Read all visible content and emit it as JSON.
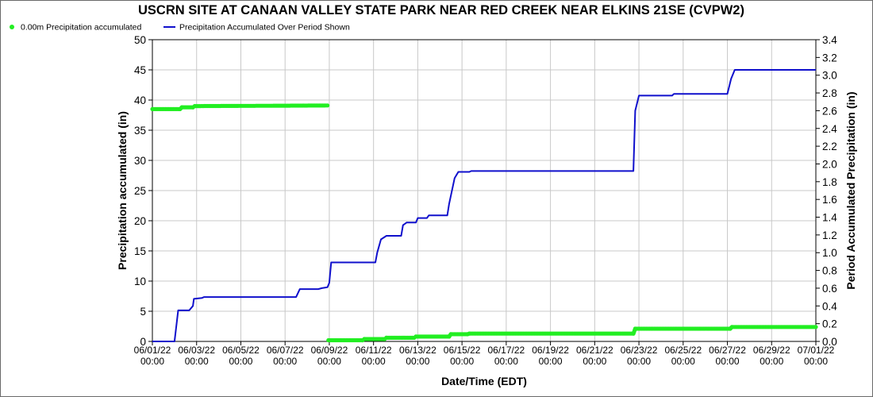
{
  "chart_data": {
    "type": "line",
    "title": "USCRN SITE AT CANAAN VALLEY STATE PARK NEAR RED CREEK NEAR ELKINS 21SE (CVPW2)",
    "xlabel": "Date/Time (EDT)",
    "ylabel_left": "Precipitation accumulated (in)",
    "ylabel_right": "Period Accumulated Precipitation (in)",
    "x_ticks": [
      "06/01/22 00:00",
      "06/03/22 00:00",
      "06/05/22 00:00",
      "06/07/22 00:00",
      "06/09/22 00:00",
      "06/11/22 00:00",
      "06/13/22 00:00",
      "06/15/22 00:00",
      "06/17/22 00:00",
      "06/19/22 00:00",
      "06/21/22 00:00",
      "06/23/22 00:00",
      "06/25/22 00:00",
      "06/27/22 00:00",
      "06/29/22 00:00",
      "07/01/22 00:00"
    ],
    "xlim": [
      "06/01/22 00:00",
      "07/01/22 00:00"
    ],
    "ylim_left": [
      0,
      50
    ],
    "yticks_left": [
      "0",
      "5",
      "10",
      "15",
      "20",
      "25",
      "30",
      "35",
      "40",
      "45",
      "50"
    ],
    "ylim_right": [
      0,
      3.4
    ],
    "yticks_right": [
      "0.0",
      "0.2",
      "0.4",
      "0.6",
      "0.8",
      "1.0",
      "1.2",
      "1.4",
      "1.6",
      "1.8",
      "2.0",
      "2.2",
      "2.4",
      "2.6",
      "2.8",
      "3.0",
      "3.2",
      "3.4"
    ],
    "grid": true,
    "legend_position": "top-left",
    "series": [
      {
        "name": "0.00m Precipitation accumulated",
        "axis": "left",
        "color": "#22ee22",
        "style": "dots",
        "points": [
          [
            "06/01/22 00:00",
            38.5
          ],
          [
            "06/02/22 06:00",
            38.5
          ],
          [
            "06/02/22 08:00",
            38.8
          ],
          [
            "06/02/22 20:00",
            38.8
          ],
          [
            "06/02/22 22:00",
            39.0
          ],
          [
            "06/08/22 22:00",
            39.1
          ],
          [
            "06/08/22 23:00",
            0.2
          ],
          [
            "06/10/22 12:00",
            0.2
          ],
          [
            "06/10/22 14:00",
            0.4
          ],
          [
            "06/11/22 12:00",
            0.4
          ],
          [
            "06/11/22 14:00",
            0.6
          ],
          [
            "06/12/22 20:00",
            0.6
          ],
          [
            "06/12/22 22:00",
            0.8
          ],
          [
            "06/14/22 10:00",
            0.8
          ],
          [
            "06/14/22 12:00",
            1.2
          ],
          [
            "06/15/22 06:00",
            1.2
          ],
          [
            "06/15/22 08:00",
            1.3
          ],
          [
            "06/22/22 18:00",
            1.3
          ],
          [
            "06/22/22 20:00",
            2.1
          ],
          [
            "06/27/22 03:00",
            2.1
          ],
          [
            "06/27/22 05:00",
            2.4
          ],
          [
            "07/01/22 00:00",
            2.4
          ]
        ]
      },
      {
        "name": "Precipitation Accumulated Over Period Shown",
        "axis": "right",
        "color": "#1010cc",
        "style": "line",
        "points": [
          [
            "06/01/22 00:00",
            0
          ],
          [
            "06/02/22 00:00",
            0
          ],
          [
            "06/02/22 04:00",
            0.35
          ],
          [
            "06/02/22 16:00",
            0.35
          ],
          [
            "06/02/22 20:00",
            0.4
          ],
          [
            "06/02/22 21:00",
            0.48
          ],
          [
            "06/03/22 06:00",
            0.49
          ],
          [
            "06/03/22 08:00",
            0.5
          ],
          [
            "06/07/22 12:00",
            0.5
          ],
          [
            "06/07/22 16:00",
            0.59
          ],
          [
            "06/08/22 12:00",
            0.59
          ],
          [
            "06/08/22 16:00",
            0.6
          ],
          [
            "06/08/22 22:00",
            0.61
          ],
          [
            "06/09/22 00:00",
            0.66
          ],
          [
            "06/09/22 02:00",
            0.89
          ],
          [
            "06/11/22 02:00",
            0.89
          ],
          [
            "06/11/22 04:00",
            1.0
          ],
          [
            "06/11/22 08:00",
            1.15
          ],
          [
            "06/11/22 14:00",
            1.19
          ],
          [
            "06/12/22 06:00",
            1.19
          ],
          [
            "06/12/22 08:00",
            1.31
          ],
          [
            "06/12/22 12:00",
            1.34
          ],
          [
            "06/12/22 22:00",
            1.34
          ],
          [
            "06/13/22 00:00",
            1.39
          ],
          [
            "06/13/22 10:00",
            1.39
          ],
          [
            "06/13/22 12:00",
            1.42
          ],
          [
            "06/14/22 08:00",
            1.42
          ],
          [
            "06/14/22 10:00",
            1.55
          ],
          [
            "06/14/22 16:00",
            1.84
          ],
          [
            "06/14/22 20:00",
            1.91
          ],
          [
            "06/15/22 08:00",
            1.91
          ],
          [
            "06/15/22 10:00",
            1.92
          ],
          [
            "06/22/22 18:00",
            1.92
          ],
          [
            "06/22/22 20:00",
            2.6
          ],
          [
            "06/23/22 00:00",
            2.77
          ],
          [
            "06/24/22 12:00",
            2.77
          ],
          [
            "06/24/22 14:00",
            2.79
          ],
          [
            "06/27/22 00:00",
            2.79
          ],
          [
            "06/27/22 04:00",
            2.96
          ],
          [
            "06/27/22 08:00",
            3.06
          ],
          [
            "07/01/22 00:00",
            3.06
          ]
        ]
      }
    ]
  }
}
